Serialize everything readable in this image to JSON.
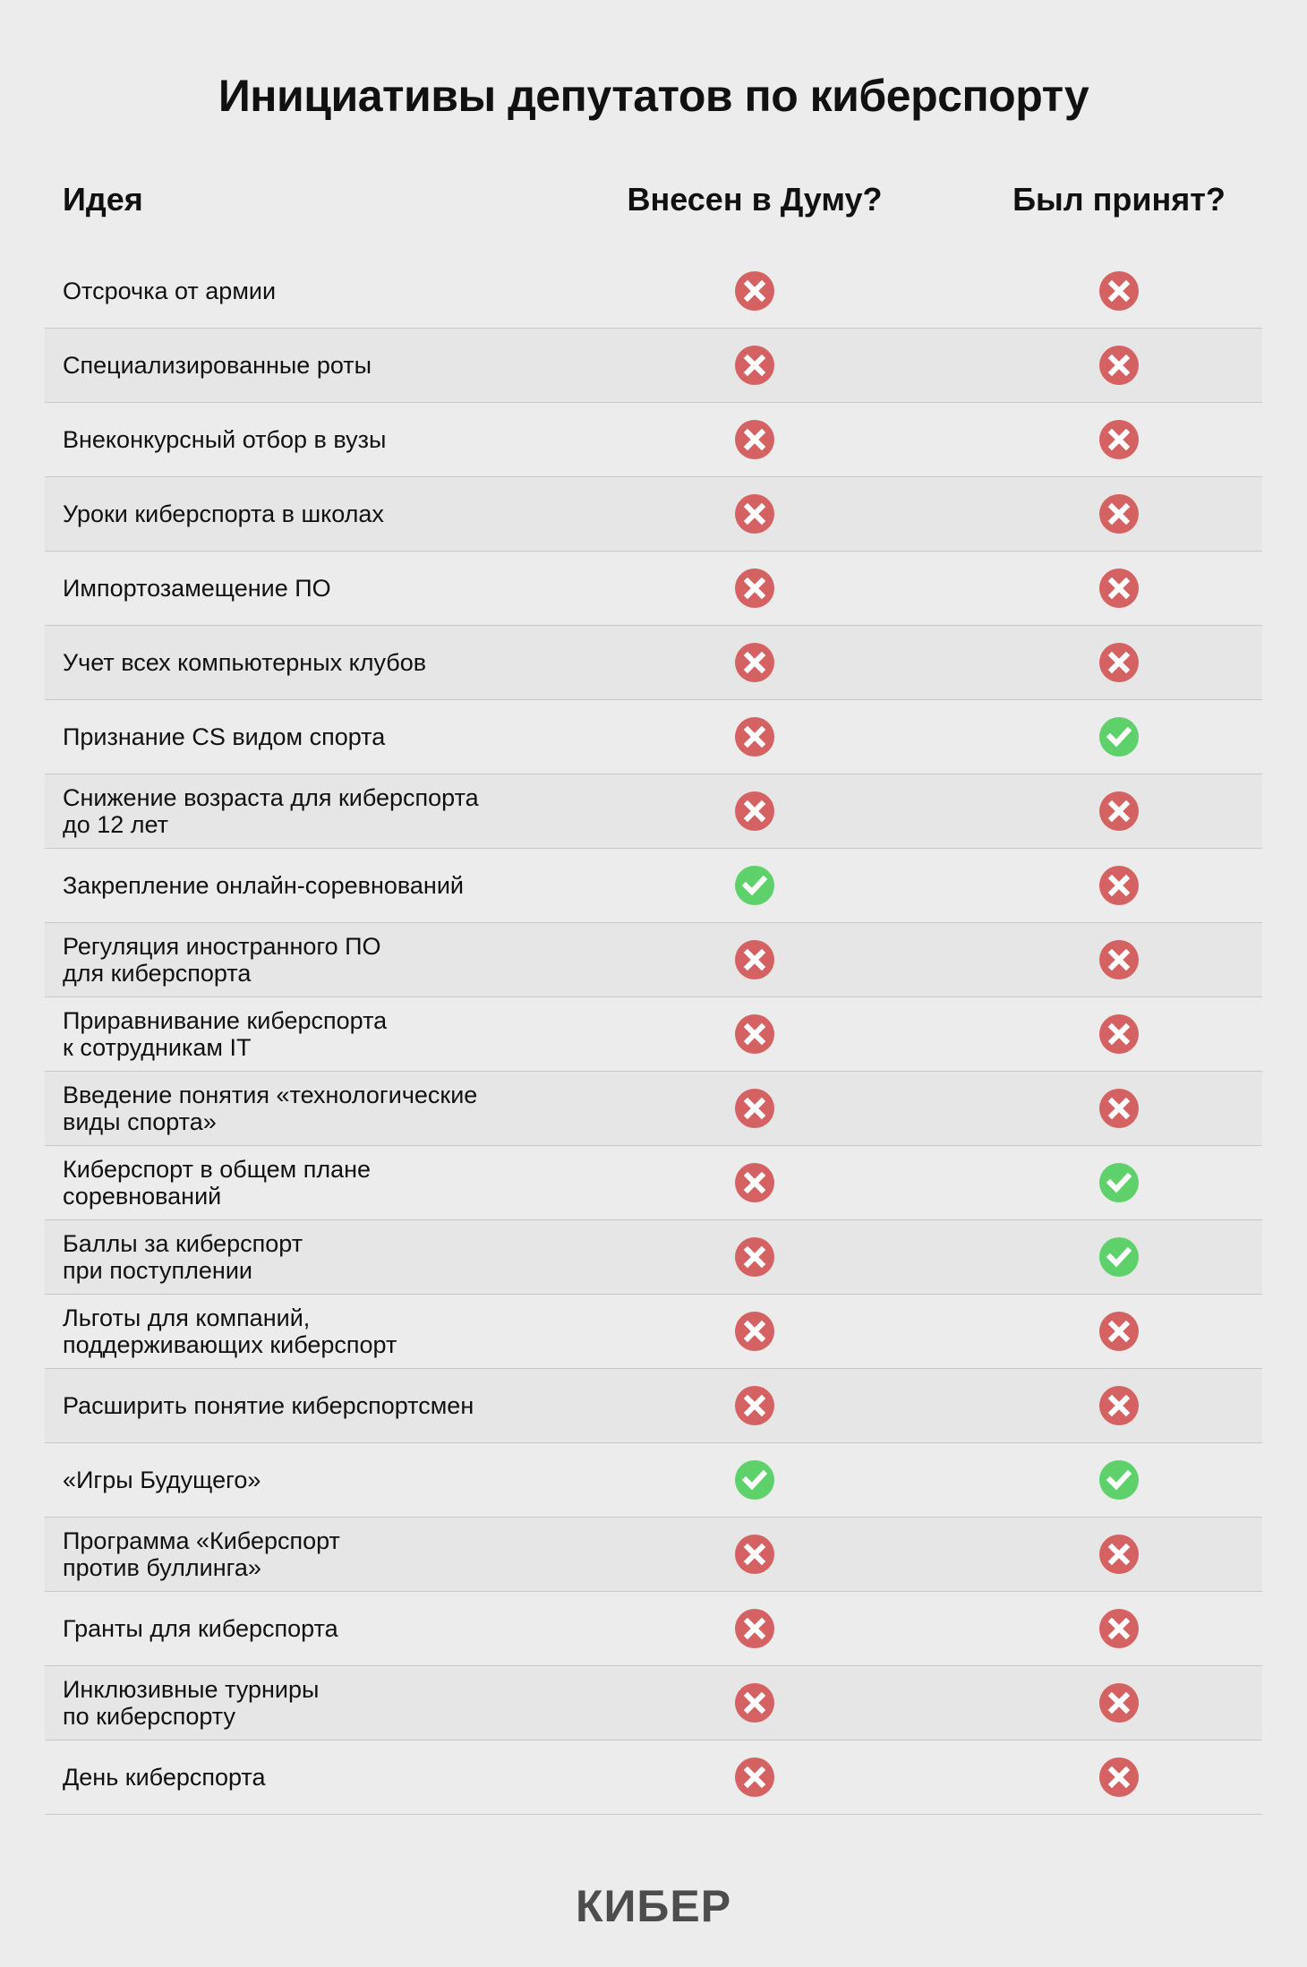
{
  "title": "Инициативы депутатов по киберспорту",
  "headers": {
    "idea": "Идея",
    "submitted": "Внесен в Думу?",
    "adopted": "Был принят?"
  },
  "colors": {
    "no": "#d56262",
    "yes": "#5fd16b",
    "background": "#ececec"
  },
  "icons": {
    "no": "x-circle-icon",
    "yes": "check-circle-icon"
  },
  "rows": [
    {
      "idea": "Отсрочка от армии",
      "submitted": false,
      "adopted": false
    },
    {
      "idea": "Специализированные роты",
      "submitted": false,
      "adopted": false
    },
    {
      "idea": "Внеконкурсный отбор в вузы",
      "submitted": false,
      "adopted": false
    },
    {
      "idea": "Уроки киберспорта в школах",
      "submitted": false,
      "adopted": false
    },
    {
      "idea": "Импортозамещение ПО",
      "submitted": false,
      "adopted": false
    },
    {
      "idea": "Учет всех компьютерных клубов",
      "submitted": false,
      "adopted": false
    },
    {
      "idea": "Признание CS видом спорта",
      "submitted": false,
      "adopted": true
    },
    {
      "idea": "Снижение возраста для киберспорта\nдо 12 лет",
      "submitted": false,
      "adopted": false
    },
    {
      "idea": "Закрепление онлайн-соревнований",
      "submitted": true,
      "adopted": false
    },
    {
      "idea": "Регуляция иностранного ПО\nдля киберспорта",
      "submitted": false,
      "adopted": false
    },
    {
      "idea": "Приравнивание киберспорта\nк сотрудникам IT",
      "submitted": false,
      "adopted": false
    },
    {
      "idea": "Введение понятия «технологические\nвиды спорта»",
      "submitted": false,
      "adopted": false
    },
    {
      "idea": "Киберспорт в общем плане\nсоревнований",
      "submitted": false,
      "adopted": true
    },
    {
      "idea": "Баллы за киберспорт\nпри поступлении",
      "submitted": false,
      "adopted": true
    },
    {
      "idea": "Льготы для компаний,\nподдерживающих киберспорт",
      "submitted": false,
      "adopted": false
    },
    {
      "idea": "Расширить понятие киберспортсмен",
      "submitted": false,
      "adopted": false
    },
    {
      "idea": "«Игры Будущего»",
      "submitted": true,
      "adopted": true
    },
    {
      "idea": "Программа «Киберспорт\nпротив буллинга»",
      "submitted": false,
      "adopted": false
    },
    {
      "idea": "Гранты для киберспорта",
      "submitted": false,
      "adopted": false
    },
    {
      "idea": "Инклюзивные турниры\nпо киберспорту",
      "submitted": false,
      "adopted": false
    },
    {
      "idea": "День киберспорта",
      "submitted": false,
      "adopted": false
    }
  ],
  "logo": "КИБЕР"
}
